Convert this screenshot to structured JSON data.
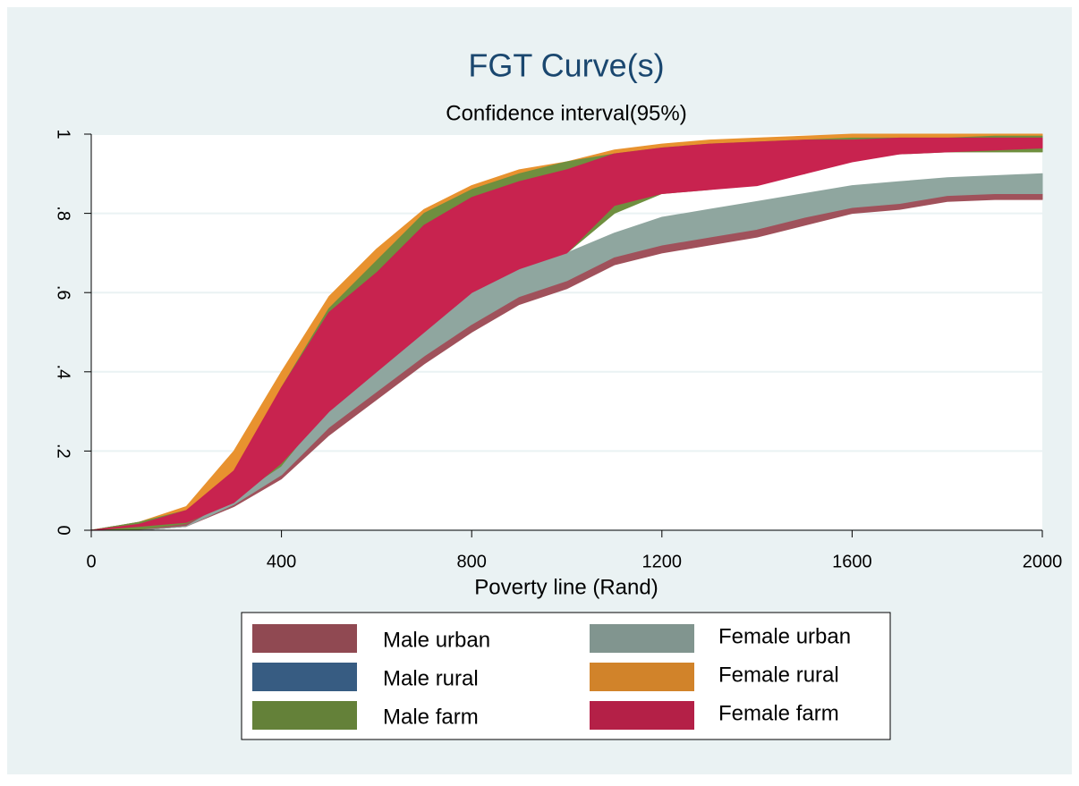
{
  "chart_data": {
    "type": "band",
    "title": "FGT Curve(s)",
    "subtitle": "Confidence interval(95%)",
    "x_label": "Poverty line (Rand)",
    "x": [
      0,
      100,
      200,
      300,
      400,
      500,
      600,
      700,
      800,
      900,
      1000,
      1100,
      1200,
      1300,
      1400,
      1500,
      1600,
      1700,
      1800,
      1900,
      2000
    ],
    "xlim": [
      0,
      2000
    ],
    "xticks": [
      0,
      400,
      800,
      1200,
      1600,
      2000
    ],
    "ylim": [
      0,
      1
    ],
    "yticks": [
      0,
      {
        "value": 0.2,
        "label": ".2"
      },
      {
        "value": 0.4,
        "label": ".4"
      },
      {
        "value": 0.6,
        "label": ".6"
      },
      {
        "value": 0.8,
        "label": ".8"
      },
      1
    ],
    "grid": true,
    "series": [
      {
        "name": "Male urban",
        "color": "#a0515b",
        "lower": [
          0,
          0,
          0.01,
          0.06,
          0.13,
          0.24,
          0.33,
          0.42,
          0.5,
          0.57,
          0.61,
          0.67,
          0.7,
          0.72,
          0.74,
          0.77,
          0.8,
          0.81,
          0.83,
          0.835,
          0.835
        ],
        "upper": [
          0,
          0,
          0.015,
          0.075,
          0.15,
          0.265,
          0.355,
          0.445,
          0.525,
          0.595,
          0.635,
          0.695,
          0.725,
          0.745,
          0.765,
          0.795,
          0.82,
          0.83,
          0.85,
          0.855,
          0.855
        ]
      },
      {
        "name": "Male rural",
        "color": "#3d6690",
        "lower": [
          0,
          0.01,
          0.03,
          0.12,
          0.3,
          0.5,
          0.6,
          0.72,
          0.8,
          0.85,
          0.9,
          0.93,
          0.95,
          0.96,
          0.97,
          0.975,
          0.98,
          0.985,
          0.985,
          0.985,
          0.985
        ],
        "upper": [
          0,
          0.02,
          0.055,
          0.18,
          0.38,
          0.57,
          0.69,
          0.79,
          0.85,
          0.89,
          0.92,
          0.95,
          0.97,
          0.98,
          0.985,
          0.99,
          0.995,
          0.995,
          0.995,
          0.995,
          0.995
        ]
      },
      {
        "name": "Male farm",
        "color": "#6f8f3f",
        "lower": [
          0,
          0,
          0.01,
          0.07,
          0.15,
          0.3,
          0.41,
          0.51,
          0.6,
          0.66,
          0.7,
          0.8,
          0.85,
          0.86,
          0.88,
          0.9,
          0.94,
          0.95,
          0.955,
          0.955,
          0.955
        ],
        "upper": [
          0,
          0.02,
          0.05,
          0.14,
          0.36,
          0.56,
          0.68,
          0.8,
          0.86,
          0.9,
          0.93,
          0.95,
          0.965,
          0.975,
          0.98,
          0.985,
          0.99,
          0.99,
          0.99,
          0.995,
          0.995
        ]
      },
      {
        "name": "Female urban",
        "color": "#8fa69f",
        "lower": [
          0,
          0,
          0.01,
          0.065,
          0.14,
          0.26,
          0.35,
          0.44,
          0.52,
          0.59,
          0.63,
          0.69,
          0.72,
          0.74,
          0.76,
          0.79,
          0.815,
          0.825,
          0.845,
          0.85,
          0.85
        ],
        "upper": [
          0,
          0,
          0.01,
          0.08,
          0.16,
          0.31,
          0.42,
          0.53,
          0.61,
          0.67,
          0.7,
          0.75,
          0.79,
          0.81,
          0.83,
          0.85,
          0.87,
          0.88,
          0.89,
          0.895,
          0.9
        ]
      },
      {
        "name": "Female rural",
        "color": "#e8922f",
        "lower": [
          0,
          0.01,
          0.03,
          0.12,
          0.3,
          0.5,
          0.6,
          0.72,
          0.8,
          0.85,
          0.9,
          0.93,
          0.95,
          0.96,
          0.97,
          0.975,
          0.98,
          0.985,
          0.985,
          0.985,
          0.985
        ],
        "upper": [
          0,
          0.02,
          0.06,
          0.2,
          0.4,
          0.59,
          0.71,
          0.81,
          0.87,
          0.91,
          0.93,
          0.96,
          0.975,
          0.985,
          0.99,
          0.995,
          1,
          1,
          1,
          1,
          1
        ]
      },
      {
        "name": "Female farm",
        "color": "#c8234f",
        "lower": [
          0,
          0.01,
          0.02,
          0.07,
          0.17,
          0.3,
          0.4,
          0.5,
          0.6,
          0.66,
          0.7,
          0.82,
          0.85,
          0.86,
          0.87,
          0.9,
          0.93,
          0.95,
          0.955,
          0.96,
          0.965
        ],
        "upper": [
          0,
          0.015,
          0.05,
          0.15,
          0.36,
          0.55,
          0.65,
          0.77,
          0.84,
          0.88,
          0.91,
          0.95,
          0.965,
          0.975,
          0.98,
          0.985,
          0.985,
          0.99,
          0.99,
          0.99,
          0.99
        ]
      }
    ]
  }
}
